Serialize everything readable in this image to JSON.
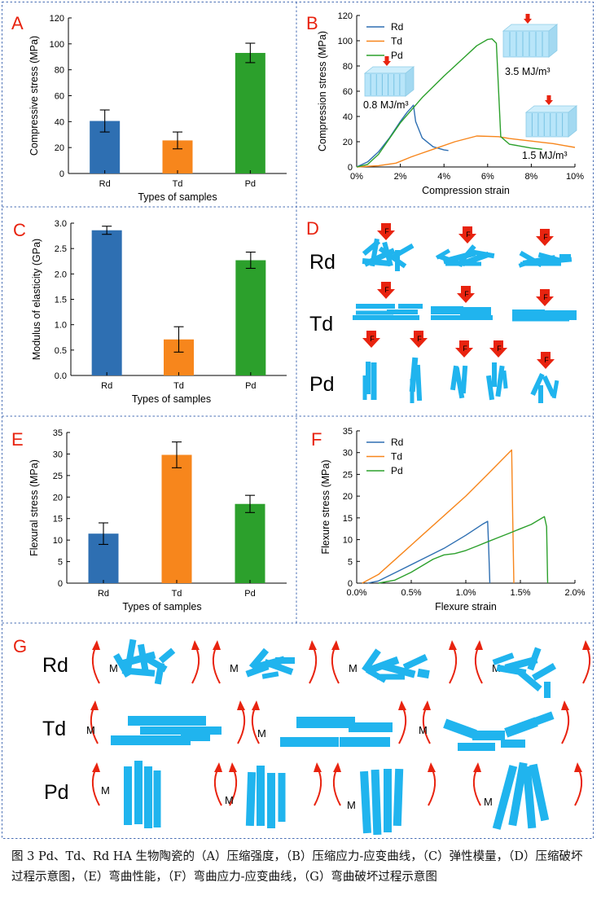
{
  "figure": {
    "caption": "图 3 Pd、Td、Rd HA 生物陶瓷的（A）压缩强度，（B）压缩应力-应变曲线，（C）弹性模量，（D）压缩破坏过程示意图，（E）弯曲性能，（F）弯曲应力-应变曲线，（G）弯曲破坏过程示意图",
    "colors": {
      "rd": "#2e6fb2",
      "td": "#f7861c",
      "pd": "#2ca02c",
      "block": "#20b4ee",
      "arrow": "#e8230f",
      "letter": "#e8230f"
    }
  },
  "panels": {
    "A": {
      "letter": "A"
    },
    "B": {
      "letter": "B",
      "annotations": [
        "0.8 MJ/m³",
        "3.5 MJ/m³",
        "1.5 MJ/m³"
      ]
    },
    "C": {
      "letter": "C"
    },
    "D": {
      "letter": "D",
      "rows": [
        "Rd",
        "Td",
        "Pd"
      ],
      "force_label": "F"
    },
    "E": {
      "letter": "E"
    },
    "F": {
      "letter": "F"
    },
    "G": {
      "letter": "G",
      "rows": [
        "Rd",
        "Td",
        "Pd"
      ],
      "moment_label": "M"
    }
  },
  "chart_data": [
    {
      "panel": "A",
      "type": "bar",
      "categories": [
        "Rd",
        "Td",
        "Pd"
      ],
      "values": [
        40.5,
        25.5,
        93.0
      ],
      "errors": [
        8.5,
        6.5,
        7.5
      ],
      "xlabel": "Types of samples",
      "ylabel": "Compressive stress (MPa)",
      "ylim": [
        0,
        120
      ],
      "yticks": [
        "0",
        "20",
        "40",
        "60",
        "80",
        "100",
        "120"
      ]
    },
    {
      "panel": "B",
      "type": "line",
      "xlabel": "Compression strain",
      "ylabel": "Compression stress (MPa)",
      "xlim": [
        0,
        10
      ],
      "ylim": [
        0,
        120
      ],
      "xticks": [
        "0%",
        "2%",
        "4%",
        "6%",
        "8%",
        "10%"
      ],
      "yticks": [
        "0",
        "20",
        "40",
        "60",
        "80",
        "100",
        "120"
      ],
      "legend": "top-left",
      "series": [
        {
          "name": "Rd",
          "x": [
            0,
            0.5,
            1.0,
            1.5,
            2.0,
            2.3,
            2.5,
            2.6,
            2.7,
            3.0,
            3.5,
            4.0,
            4.2
          ],
          "y": [
            0,
            4,
            12,
            23,
            36,
            43,
            47,
            49,
            36,
            23,
            16,
            13.5,
            13
          ]
        },
        {
          "name": "Td",
          "x": [
            0,
            1.0,
            1.8,
            2.5,
            3.5,
            4.5,
            5.5,
            6.5,
            7.0,
            7.5,
            8.0,
            8.5,
            9.0,
            9.5,
            10.0
          ],
          "y": [
            0,
            1,
            3,
            8,
            14,
            20,
            24.5,
            24,
            22.5,
            21.5,
            20.5,
            19.5,
            18.5,
            17,
            15.5
          ]
        },
        {
          "name": "Pd",
          "x": [
            0,
            0.5,
            1.0,
            2.0,
            3.0,
            4.0,
            5.0,
            5.5,
            6.0,
            6.2,
            6.4,
            6.6,
            7.0,
            7.5,
            8.0,
            8.5
          ],
          "y": [
            0,
            2,
            10,
            35,
            55,
            72,
            88,
            96,
            101,
            101.5,
            98,
            24,
            18,
            16.5,
            15,
            14
          ]
        }
      ]
    },
    {
      "panel": "C",
      "type": "bar",
      "categories": [
        "Rd",
        "Td",
        "Pd"
      ],
      "values": [
        2.86,
        0.71,
        2.27
      ],
      "errors": [
        0.08,
        0.25,
        0.16
      ],
      "xlabel": "Types of samples",
      "ylabel": "Modulus of elasticity (GPa)",
      "ylim": [
        0,
        3.0
      ],
      "yticks": [
        "0.0",
        "0.5",
        "1.0",
        "1.5",
        "2.0",
        "2.5",
        "3.0"
      ]
    },
    {
      "panel": "E",
      "type": "bar",
      "categories": [
        "Rd",
        "Td",
        "Pd"
      ],
      "values": [
        11.5,
        29.8,
        18.4
      ],
      "errors": [
        2.5,
        3.0,
        2.0
      ],
      "xlabel": "Types of samples",
      "ylabel": "Flexural stress (MPa)",
      "ylim": [
        0,
        35
      ],
      "yticks": [
        "0",
        "5",
        "10",
        "15",
        "20",
        "25",
        "30",
        "35"
      ]
    },
    {
      "panel": "F",
      "type": "line",
      "xlabel": "Flexure strain",
      "ylabel": "Flexure stress (MPa)",
      "xlim": [
        0,
        2.0
      ],
      "ylim": [
        0,
        35
      ],
      "xticks": [
        "0.0%",
        "0.5%",
        "1.0%",
        "1.5%",
        "2.0%"
      ],
      "yticks": [
        "0",
        "5",
        "10",
        "15",
        "20",
        "25",
        "30",
        "35"
      ],
      "legend": "top-left",
      "series": [
        {
          "name": "Rd",
          "x": [
            0.1,
            0.2,
            0.4,
            0.6,
            0.8,
            1.0,
            1.15,
            1.2,
            1.21,
            1.22
          ],
          "y": [
            0,
            0.5,
            3,
            5.5,
            8,
            11,
            13.5,
            14.2,
            8,
            0
          ]
        },
        {
          "name": "Td",
          "x": [
            0.05,
            0.2,
            0.4,
            0.6,
            0.8,
            1.0,
            1.2,
            1.42,
            1.43,
            1.44
          ],
          "y": [
            0,
            2,
            6.5,
            11,
            15.5,
            20,
            25,
            30.6,
            15,
            0
          ]
        },
        {
          "name": "Pd",
          "x": [
            0.2,
            0.35,
            0.5,
            0.6,
            0.7,
            0.8,
            0.9,
            1.0,
            1.1,
            1.2,
            1.3,
            1.4,
            1.5,
            1.6,
            1.72,
            1.74,
            1.75
          ],
          "y": [
            0,
            0.7,
            2.5,
            4,
            5.5,
            6.5,
            6.8,
            7.5,
            8.5,
            9.5,
            10.5,
            11.5,
            12.5,
            13.5,
            15.3,
            13,
            0
          ]
        }
      ]
    }
  ]
}
